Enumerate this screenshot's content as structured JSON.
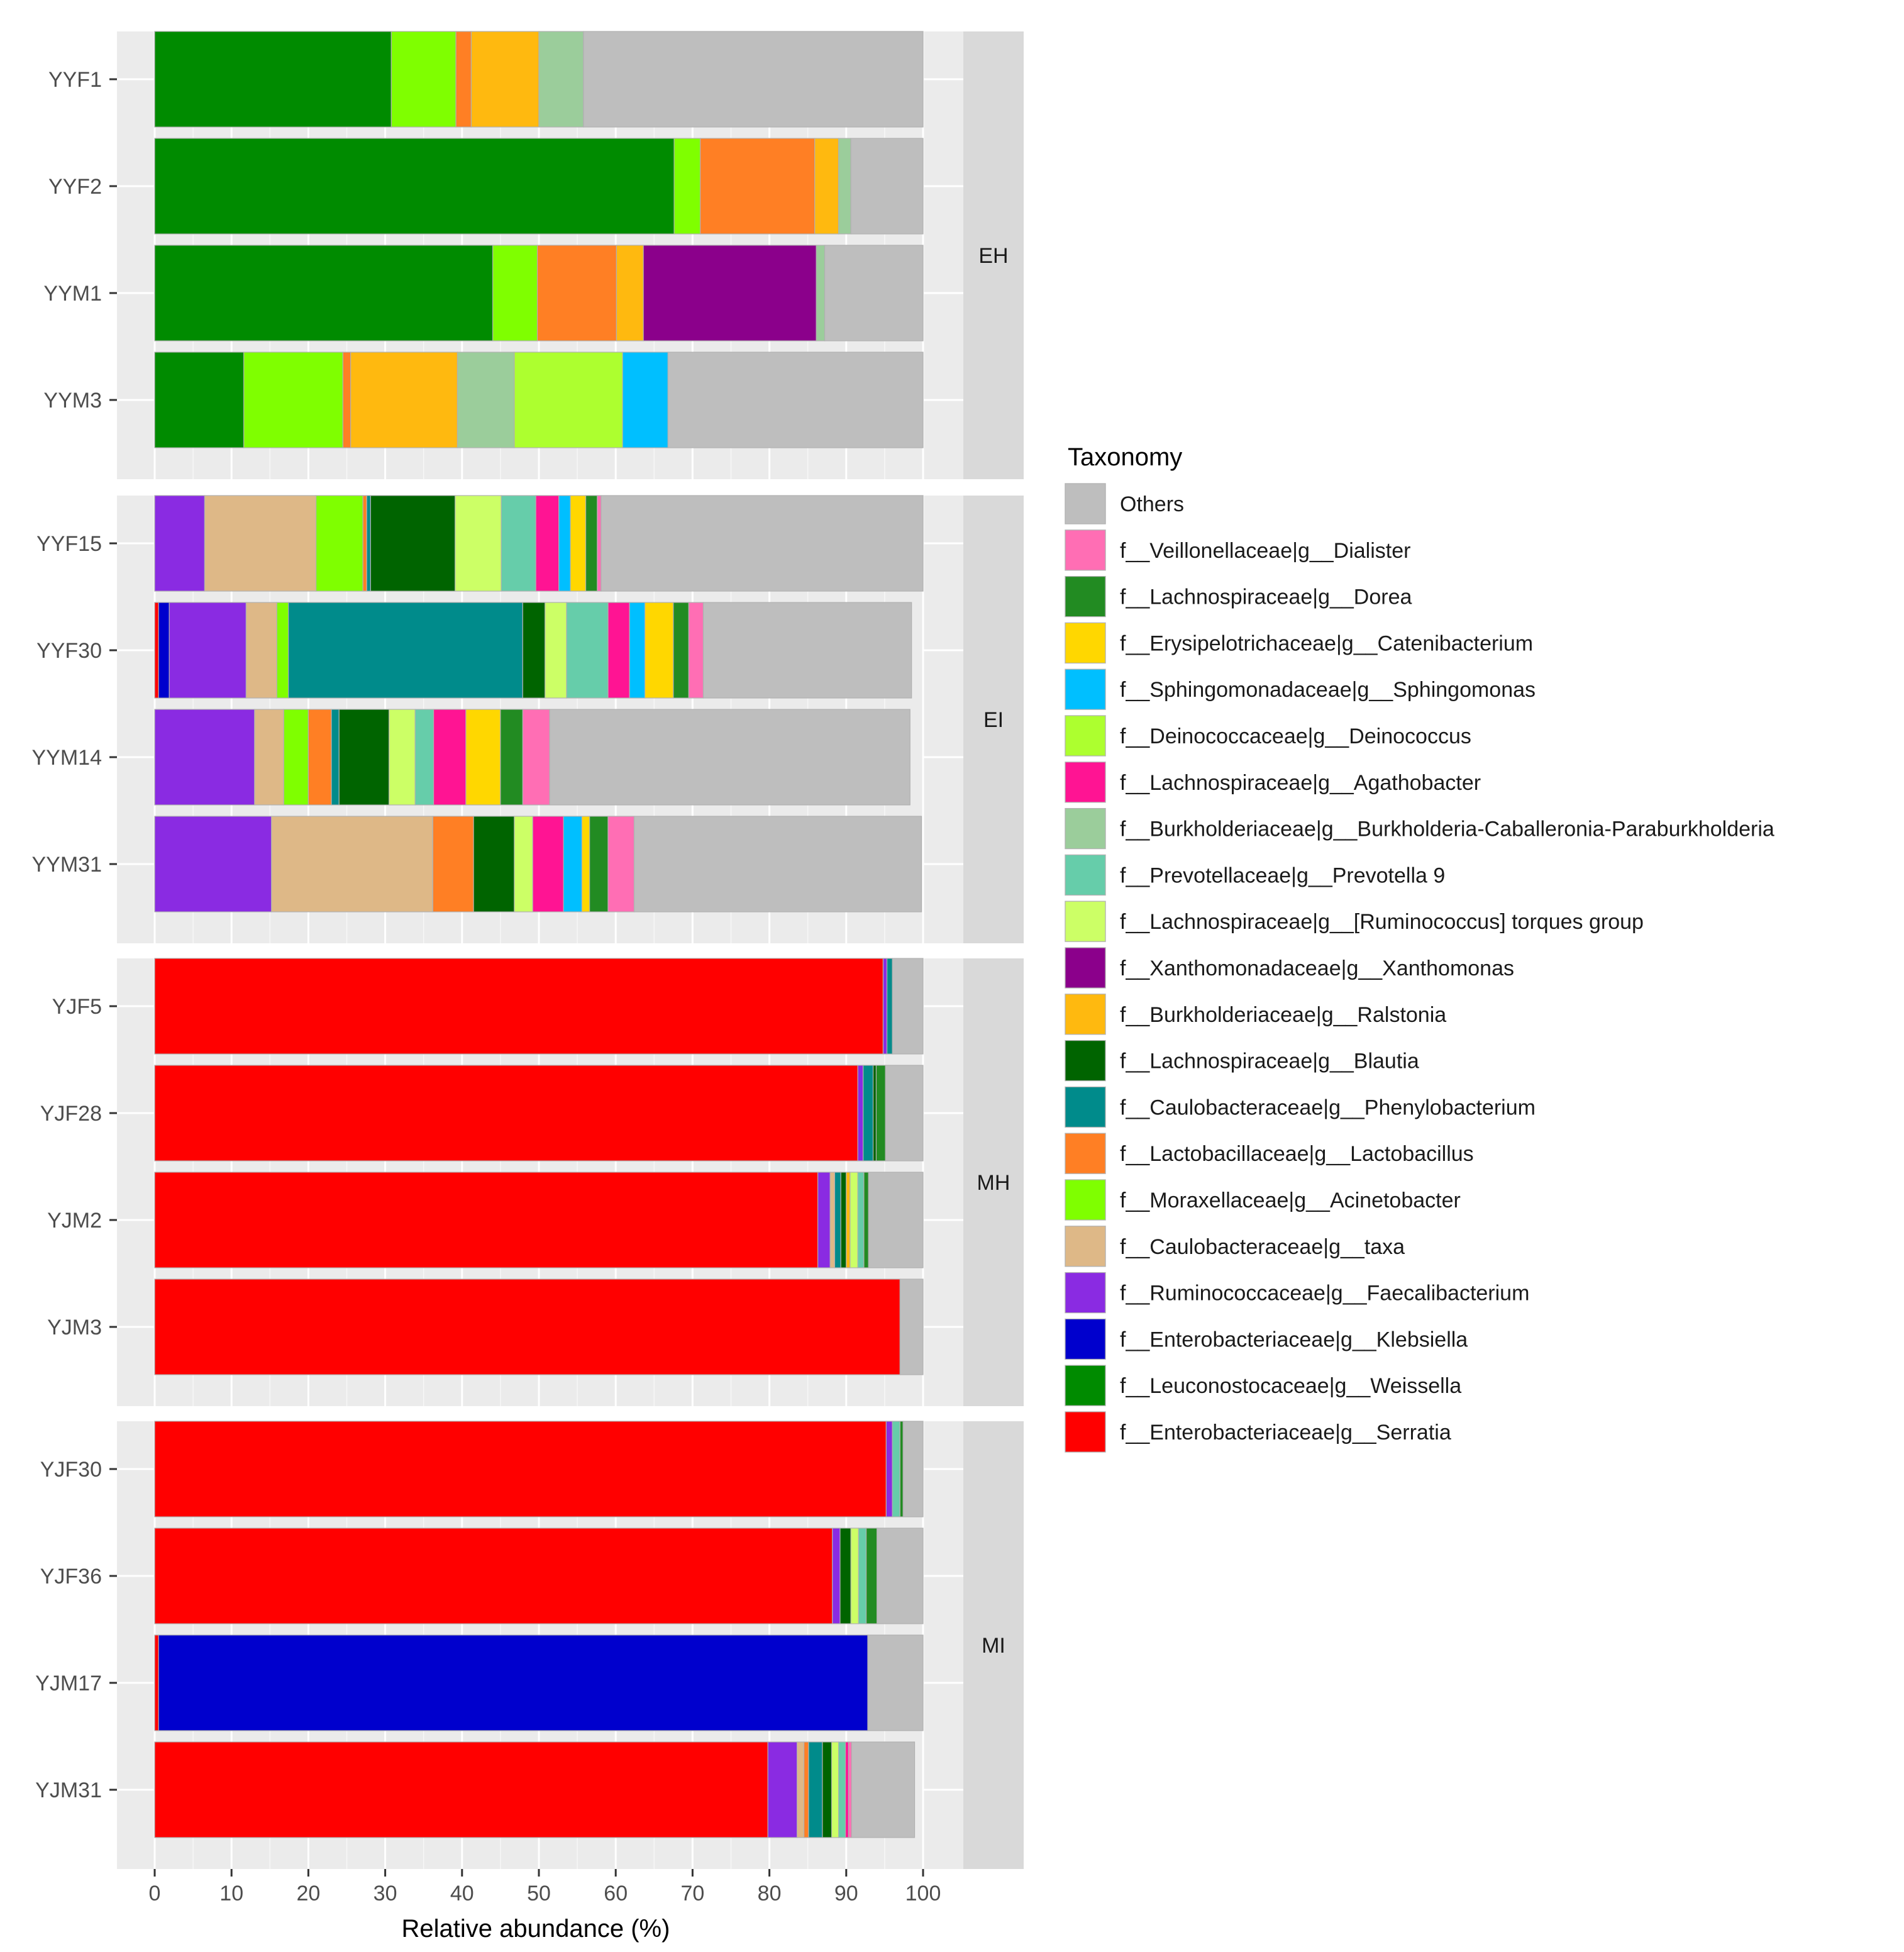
{
  "chart_data": {
    "type": "bar",
    "orientation": "horizontal",
    "stacked": true,
    "xlabel": "Relative abundance (%)",
    "ylabel": "",
    "xlim": [
      0,
      100
    ],
    "xticks": [
      "0",
      "10",
      "20",
      "30",
      "40",
      "50",
      "60",
      "70",
      "80",
      "90",
      "100"
    ],
    "grid": true,
    "legend_position": "right",
    "legend_title": "Taxonomy",
    "taxa": [
      {
        "name": "f__Enterobacteriaceae|g__Serratia",
        "color": "#ff0000"
      },
      {
        "name": "f__Leuconostocaceae|g__Weissella",
        "color": "#008b00"
      },
      {
        "name": "f__Enterobacteriaceae|g__Klebsiella",
        "color": "#0000cd"
      },
      {
        "name": "f__Ruminococcaceae|g__Faecalibacterium",
        "color": "#8a2be2"
      },
      {
        "name": "f__Caulobacteraceae|g__taxa",
        "color": "#deb887"
      },
      {
        "name": "f__Moraxellaceae|g__Acinetobacter",
        "color": "#7fff00"
      },
      {
        "name": "f__Lactobacillaceae|g__Lactobacillus",
        "color": "#ff7f24"
      },
      {
        "name": "f__Caulobacteraceae|g__Phenylobacterium",
        "color": "#008b8b"
      },
      {
        "name": "f__Lachnospiraceae|g__Blautia",
        "color": "#006400"
      },
      {
        "name": "f__Burkholderiaceae|g__Ralstonia",
        "color": "#ffb90f"
      },
      {
        "name": "f__Xanthomonadaceae|g__Xanthomonas",
        "color": "#8b008b"
      },
      {
        "name": "f__Lachnospiraceae|g__[Ruminococcus] torques group",
        "color": "#ccff66"
      },
      {
        "name": "f__Prevotellaceae|g__Prevotella 9",
        "color": "#66cdaa"
      },
      {
        "name": "f__Burkholderiaceae|g__Burkholderia-Caballeronia-Paraburkholderia",
        "color": "#9bcd9b"
      },
      {
        "name": "f__Lachnospiraceae|g__Agathobacter",
        "color": "#ff1493"
      },
      {
        "name": "f__Deinococcaceae|g__Deinococcus",
        "color": "#adff2f"
      },
      {
        "name": "f__Sphingomonadaceae|g__Sphingomonas",
        "color": "#00bfff"
      },
      {
        "name": "f__Erysipelotrichaceae|g__Catenibacterium",
        "color": "#ffd700"
      },
      {
        "name": "f__Lachnospiraceae|g__Dorea",
        "color": "#228b22"
      },
      {
        "name": "f__Veillonellaceae|g__Dialister",
        "color": "#ff6eb4"
      },
      {
        "name": "Others",
        "color": "#bebebe"
      }
    ],
    "facets": [
      {
        "label": "EH",
        "samples": [
          {
            "name": "YYF1",
            "values": {
              "f__Leuconostocaceae|g__Weissella": 30.8,
              "f__Moraxellaceae|g__Acinetobacter": 8.4,
              "f__Lactobacillaceae|g__Lactobacillus": 2.0,
              "f__Burkholderiaceae|g__Ralstonia": 8.8,
              "f__Burkholderiaceae|g__Burkholderia-Caballeronia-Paraburkholderia": 5.8,
              "Others": 44.2
            }
          },
          {
            "name": "YYF2",
            "values": {
              "f__Leuconostocaceae|g__Weissella": 67.6,
              "f__Moraxellaceae|g__Acinetobacter": 3.4,
              "f__Lactobacillaceae|g__Lactobacillus": 14.9,
              "f__Burkholderiaceae|g__Ralstonia": 3.1,
              "f__Burkholderiaceae|g__Burkholderia-Caballeronia-Paraburkholderia": 1.6,
              "Others": 9.4
            }
          },
          {
            "name": "YYM1",
            "values": {
              "f__Leuconostocaceae|g__Weissella": 44.0,
              "f__Moraxellaceae|g__Acinetobacter": 5.8,
              "f__Lactobacillaceae|g__Lactobacillus": 10.3,
              "f__Burkholderiaceae|g__Ralstonia": 3.5,
              "f__Xanthomonadaceae|g__Xanthomonas": 22.5,
              "f__Burkholderiaceae|g__Burkholderia-Caballeronia-Paraburkholderia": 1.1,
              "Others": 12.8
            }
          },
          {
            "name": "YYM3",
            "values": {
              "f__Leuconostocaceae|g__Weissella": 11.6,
              "f__Moraxellaceae|g__Acinetobacter": 12.9,
              "f__Lactobacillaceae|g__Lactobacillus": 1.0,
              "f__Burkholderiaceae|g__Ralstonia": 13.9,
              "f__Burkholderiaceae|g__Burkholderia-Caballeronia-Paraburkholderia": 7.4,
              "f__Deinococcaceae|g__Deinococcus": 14.1,
              "f__Sphingomonadaceae|g__Sphingomonas": 5.9,
              "Others": 33.2
            }
          }
        ]
      },
      {
        "label": "EI",
        "samples": [
          {
            "name": "YYF15",
            "values": {
              "f__Ruminococcaceae|g__Faecalibacterium": 6.5,
              "f__Caulobacteraceae|g__taxa": 14.5,
              "f__Moraxellaceae|g__Acinetobacter": 6.1,
              "f__Lactobacillaceae|g__Lactobacillus": 0.5,
              "f__Caulobacteraceae|g__Phenylobacterium": 0.5,
              "f__Lachnospiraceae|g__Blautia": 11.0,
              "f__Lachnospiraceae|g__[Ruminococcus] torques group": 6.0,
              "f__Prevotellaceae|g__Prevotella 9": 4.5,
              "f__Lachnospiraceae|g__Agathobacter": 3.0,
              "f__Sphingomonadaceae|g__Sphingomonas": 1.5,
              "f__Erysipelotrichaceae|g__Catenibacterium": 2.0,
              "f__Lachnospiraceae|g__Dorea": 1.5,
              "f__Veillonellaceae|g__Dialister": 0.5,
              "Others": 41.9
            }
          },
          {
            "name": "YYF30",
            "values": {
              "f__Enterobacteriaceae|g__Serratia": 0.5,
              "f__Enterobacteriaceae|g__Klebsiella": 1.4,
              "f__Ruminococcaceae|g__Faecalibacterium": 10.0,
              "f__Caulobacteraceae|g__taxa": 4.0,
              "f__Moraxellaceae|g__Acinetobacter": 1.5,
              "f__Caulobacteraceae|g__Phenylobacterium": 30.5,
              "f__Lachnospiraceae|g__Blautia": 2.9,
              "f__Lachnospiraceae|g__[Ruminococcus] torques group": 2.8,
              "f__Prevotellaceae|g__Prevotella 9": 5.4,
              "f__Lachnospiraceae|g__Agathobacter": 2.8,
              "f__Sphingomonadaceae|g__Sphingomonas": 2.0,
              "f__Erysipelotrichaceae|g__Catenibacterium": 3.7,
              "f__Lachnospiraceae|g__Dorea": 2.0,
              "f__Veillonellaceae|g__Dialister": 1.9,
              "Others": 27.1
            }
          },
          {
            "name": "YYM14",
            "values": {
              "f__Ruminococcaceae|g__Faecalibacterium": 13.0,
              "f__Caulobacteraceae|g__taxa": 3.8,
              "f__Moraxellaceae|g__Acinetobacter": 3.2,
              "f__Lactobacillaceae|g__Lactobacillus": 3.0,
              "f__Caulobacteraceae|g__Phenylobacterium": 1.0,
              "f__Lachnospiraceae|g__Blautia": 6.5,
              "f__Lachnospiraceae|g__[Ruminococcus] torques group": 3.4,
              "f__Prevotellaceae|g__Prevotella 9": 2.4,
              "f__Lachnospiraceae|g__Agathobacter": 4.2,
              "f__Erysipelotrichaceae|g__Catenibacterium": 4.5,
              "f__Lachnospiraceae|g__Dorea": 2.9,
              "f__Veillonellaceae|g__Dialister": 3.5,
              "Others": 46.9
            }
          },
          {
            "name": "YYM31",
            "values": {
              "f__Ruminococcaceae|g__Faecalibacterium": 15.2,
              "f__Caulobacteraceae|g__taxa": 21.0,
              "f__Lactobacillaceae|g__Lactobacillus": 5.3,
              "f__Lachnospiraceae|g__Blautia": 5.3,
              "f__Lachnospiraceae|g__[Ruminococcus] torques group": 2.4,
              "f__Lachnospiraceae|g__Agathobacter": 4.0,
              "f__Sphingomonadaceae|g__Sphingomonas": 2.4,
              "f__Erysipelotrichaceae|g__Catenibacterium": 1.0,
              "f__Lachnospiraceae|g__Dorea": 2.4,
              "f__Veillonellaceae|g__Dialister": 3.4,
              "Others": 37.4
            }
          }
        ]
      },
      {
        "label": "MH",
        "samples": [
          {
            "name": "YJF5",
            "values": {
              "f__Enterobacteriaceae|g__Serratia": 94.8,
              "f__Ruminococcaceae|g__Faecalibacterium": 0.5,
              "f__Caulobacteraceae|g__Phenylobacterium": 0.7,
              "Others": 4.0
            }
          },
          {
            "name": "YJF28",
            "values": {
              "f__Enterobacteriaceae|g__Serratia": 91.5,
              "f__Ruminococcaceae|g__Faecalibacterium": 0.7,
              "f__Lachnospiraceae|g__Blautia": 0.4,
              "f__Caulobacteraceae|g__Phenylobacterium": 1.3,
              "f__Lachnospiraceae|g__Dorea": 1.2,
              "Others": 4.9
            }
          },
          {
            "name": "YJM2",
            "values": {
              "f__Enterobacteriaceae|g__Serratia": 86.3,
              "f__Ruminococcaceae|g__Faecalibacterium": 1.6,
              "f__Caulobacteraceae|g__taxa": 0.6,
              "f__Caulobacteraceae|g__Phenylobacterium": 0.8,
              "f__Lachnospiraceae|g__Blautia": 0.7,
              "f__Lachnospiraceae|g__Dorea": 0.6,
              "f__Lachnospiraceae|g__[Ruminococcus] torques group": 1.0,
              "f__Prevotellaceae|g__Prevotella 9": 0.8,
              "f__Burkholderiaceae|g__Ralstonia": 0.5,
              "Others": 7.1
            }
          },
          {
            "name": "YJM3",
            "values": {
              "f__Enterobacteriaceae|g__Serratia": 97.0,
              "Others": 3.0
            }
          }
        ]
      },
      {
        "label": "MI",
        "samples": [
          {
            "name": "YJF30",
            "values": {
              "f__Enterobacteriaceae|g__Serratia": 95.2,
              "f__Ruminococcaceae|g__Faecalibacterium": 0.8,
              "f__Prevotellaceae|g__Prevotella 9": 1.0,
              "f__Lachnospiraceae|g__Dorea": 0.4,
              "Others": 2.6
            }
          },
          {
            "name": "YJF36",
            "values": {
              "f__Enterobacteriaceae|g__Serratia": 88.2,
              "f__Ruminococcaceae|g__Faecalibacterium": 1.0,
              "f__Lachnospiraceae|g__Blautia": 1.4,
              "f__Lachnospiraceae|g__[Ruminococcus] torques group": 1.0,
              "f__Prevotellaceae|g__Prevotella 9": 1.0,
              "f__Lachnospiraceae|g__Dorea": 1.4,
              "Others": 6.0
            }
          },
          {
            "name": "YJM17",
            "values": {
              "f__Enterobacteriaceae|g__Serratia": 0.5,
              "f__Enterobacteriaceae|g__Klebsiella": 92.3,
              "Others": 7.2
            }
          },
          {
            "name": "YJM31",
            "values": {
              "f__Enterobacteriaceae|g__Serratia": 79.8,
              "f__Ruminococcaceae|g__Faecalibacterium": 3.8,
              "f__Caulobacteraceae|g__taxa": 0.9,
              "f__Lactobacillaceae|g__Lactobacillus": 0.6,
              "f__Caulobacteraceae|g__Phenylobacterium": 1.8,
              "f__Lachnospiraceae|g__Blautia": 1.2,
              "f__Lachnospiraceae|g__[Ruminococcus] torques group": 0.9,
              "f__Prevotellaceae|g__Prevotella 9": 0.9,
              "f__Lachnospiraceae|g__Agathobacter": 0.4,
              "f__Veillonellaceae|g__Dialister": 0.4,
              "Others": 8.2
            }
          }
        ]
      }
    ]
  }
}
